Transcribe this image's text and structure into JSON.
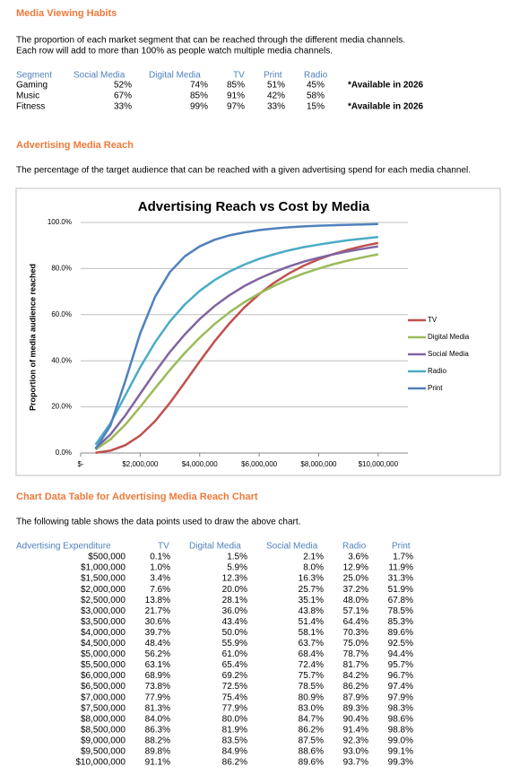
{
  "media_habits": {
    "title": "Media Viewing Habits",
    "description": [
      "The proportion of each market segment that can be reached through the different media channels.",
      "Each row will add to more than 100% as people watch multiple media channels."
    ],
    "table": {
      "header": [
        "Segment",
        "Social Media",
        "Digital Media",
        "TV",
        "Print",
        "Radio"
      ],
      "rows": [
        {
          "cells": [
            "Gaming",
            "52%",
            "74%",
            "85%",
            "51%",
            "45%"
          ],
          "note": "*Available in 2026"
        },
        {
          "cells": [
            "Music",
            "67%",
            "85%",
            "91%",
            "42%",
            "58%"
          ]
        },
        {
          "cells": [
            "Fitness",
            "33%",
            "99%",
            "97%",
            "33%",
            "15%"
          ],
          "note": "*Available in 2026"
        }
      ]
    }
  },
  "reach_section": {
    "title": "Advertising Media Reach",
    "description": "The percentage of the target audience that can be reached with a given advertising spend for each media channel."
  },
  "chart_data": {
    "type": "line",
    "title": "Advertising Reach vs Cost by Media",
    "y_label": "Proportion of media audience reached",
    "x": [
      500000,
      1000000,
      1500000,
      2000000,
      2500000,
      3000000,
      3500000,
      4000000,
      4500000,
      5000000,
      5500000,
      6000000,
      6500000,
      7000000,
      7500000,
      8000000,
      8500000,
      9000000,
      9500000,
      10000000
    ],
    "xlim": [
      0,
      11000000
    ],
    "xticks": [
      {
        "value": 0,
        "label": "$-"
      },
      {
        "value": 2000000,
        "label": "$2,000,000"
      },
      {
        "value": 4000000,
        "label": "$4,000,000"
      },
      {
        "value": 6000000,
        "label": "$6,000,000"
      },
      {
        "value": 8000000,
        "label": "$8,000,000"
      },
      {
        "value": 10000000,
        "label": "$10,000,000"
      }
    ],
    "ylim": [
      0,
      100
    ],
    "yticks": [
      {
        "value": 0,
        "label": "0.0%"
      },
      {
        "value": 20,
        "label": "20.0%"
      },
      {
        "value": 40,
        "label": "40.0%"
      },
      {
        "value": 60,
        "label": "60.0%"
      },
      {
        "value": 80,
        "label": "80.0%"
      },
      {
        "value": 100,
        "label": "100.0%"
      }
    ],
    "grid": true,
    "legend": "right",
    "series": [
      {
        "name": "TV",
        "color": "#c0504d",
        "values": [
          0.1,
          1.0,
          3.4,
          7.6,
          13.8,
          21.7,
          30.6,
          39.7,
          48.4,
          56.2,
          63.1,
          68.9,
          73.8,
          77.9,
          81.3,
          84.0,
          86.3,
          88.2,
          89.8,
          91.1
        ]
      },
      {
        "name": "Digital Media",
        "color": "#9bbb59",
        "values": [
          1.5,
          5.9,
          12.3,
          20.0,
          28.1,
          36.0,
          43.4,
          50.0,
          55.9,
          61.0,
          65.4,
          69.2,
          72.5,
          75.4,
          77.9,
          80.0,
          81.9,
          83.5,
          84.9,
          86.2
        ]
      },
      {
        "name": "Social Media",
        "color": "#8064a2",
        "values": [
          2.1,
          8.0,
          16.3,
          25.7,
          35.1,
          43.8,
          51.4,
          58.1,
          63.7,
          68.4,
          72.4,
          75.7,
          78.5,
          80.9,
          83.0,
          84.7,
          86.2,
          87.5,
          88.6,
          89.6
        ]
      },
      {
        "name": "Radio",
        "color": "#4bacc6",
        "values": [
          3.6,
          12.9,
          25.0,
          37.2,
          48.0,
          57.1,
          64.4,
          70.3,
          75.0,
          78.7,
          81.7,
          84.2,
          86.2,
          87.9,
          89.3,
          90.4,
          91.4,
          92.3,
          93.0,
          93.7
        ]
      },
      {
        "name": "Print",
        "color": "#4f81bd",
        "values": [
          1.7,
          11.9,
          31.3,
          51.9,
          67.8,
          78.5,
          85.3,
          89.6,
          92.5,
          94.4,
          95.7,
          96.7,
          97.4,
          97.9,
          98.3,
          98.6,
          98.8,
          99.0,
          99.1,
          99.3
        ]
      }
    ]
  },
  "data_table": {
    "title": "Chart Data Table for Advertising Media Reach Chart",
    "description": "The following table shows the data points used to draw the above chart.",
    "header": [
      "Advertising Expenditure",
      "TV",
      "Digital Media",
      "Social Media",
      "Radio",
      "Print"
    ],
    "rows": [
      [
        "$500,000",
        "0.1%",
        "1.5%",
        "2.1%",
        "3.6%",
        "1.7%"
      ],
      [
        "$1,000,000",
        "1.0%",
        "5.9%",
        "8.0%",
        "12.9%",
        "11.9%"
      ],
      [
        "$1,500,000",
        "3.4%",
        "12.3%",
        "16.3%",
        "25.0%",
        "31.3%"
      ],
      [
        "$2,000,000",
        "7.6%",
        "20.0%",
        "25.7%",
        "37.2%",
        "51.9%"
      ],
      [
        "$2,500,000",
        "13.8%",
        "28.1%",
        "35.1%",
        "48.0%",
        "67.8%"
      ],
      [
        "$3,000,000",
        "21.7%",
        "36.0%",
        "43.8%",
        "57.1%",
        "78.5%"
      ],
      [
        "$3,500,000",
        "30.6%",
        "43.4%",
        "51.4%",
        "64.4%",
        "85.3%"
      ],
      [
        "$4,000,000",
        "39.7%",
        "50.0%",
        "58.1%",
        "70.3%",
        "89.6%"
      ],
      [
        "$4,500,000",
        "48.4%",
        "55.9%",
        "63.7%",
        "75.0%",
        "92.5%"
      ],
      [
        "$5,000,000",
        "56.2%",
        "61.0%",
        "68.4%",
        "78.7%",
        "94.4%"
      ],
      [
        "$5,500,000",
        "63.1%",
        "65.4%",
        "72.4%",
        "81.7%",
        "95.7%"
      ],
      [
        "$6,000,000",
        "68.9%",
        "69.2%",
        "75.7%",
        "84.2%",
        "96.7%"
      ],
      [
        "$6,500,000",
        "73.8%",
        "72.5%",
        "78.5%",
        "86.2%",
        "97.4%"
      ],
      [
        "$7,000,000",
        "77.9%",
        "75.4%",
        "80.9%",
        "87.9%",
        "97.9%"
      ],
      [
        "$7,500,000",
        "81.3%",
        "77.9%",
        "83.0%",
        "89.3%",
        "98.3%"
      ],
      [
        "$8,000,000",
        "84.0%",
        "80.0%",
        "84.7%",
        "90.4%",
        "98.6%"
      ],
      [
        "$8,500,000",
        "86.3%",
        "81.9%",
        "86.2%",
        "91.4%",
        "98.8%"
      ],
      [
        "$9,000,000",
        "88.2%",
        "83.5%",
        "87.5%",
        "92.3%",
        "99.0%"
      ],
      [
        "$9,500,000",
        "89.8%",
        "84.9%",
        "88.6%",
        "93.0%",
        "99.1%"
      ],
      [
        "$10,000,000",
        "91.1%",
        "86.2%",
        "89.6%",
        "93.7%",
        "99.3%"
      ]
    ]
  }
}
